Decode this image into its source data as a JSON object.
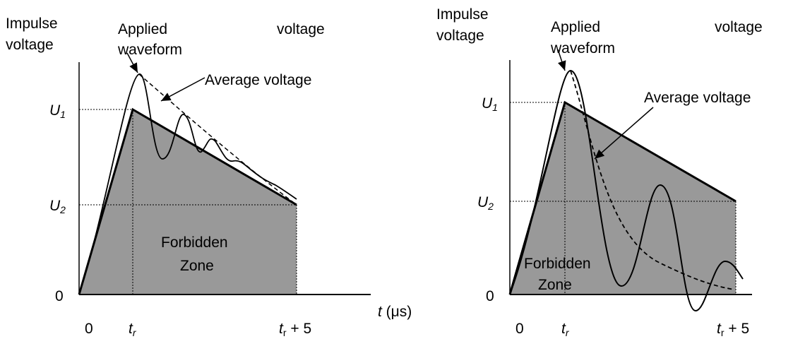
{
  "panels": [
    {
      "y_label": [
        "Impulse",
        "voltage"
      ],
      "applied_label": [
        "Applied",
        "waveform"
      ],
      "extra_label": "voltage",
      "average_label": "Average voltage",
      "u1": {
        "main": "U",
        "sub": "1"
      },
      "u2": {
        "main": "U",
        "sub": "2"
      },
      "y_zero": "0",
      "x_zero": "0",
      "tr": {
        "main": "t",
        "sub": "r"
      },
      "tr5": {
        "main": "t",
        "sub": "r",
        "rest": " + 5"
      },
      "x_label": {
        "main": "t",
        "rest": " (μs)"
      },
      "zone_label": [
        "Forbidden",
        "Zone"
      ]
    },
    {
      "y_label": [
        "Impulse",
        "voltage"
      ],
      "applied_label": [
        "Applied",
        "waveform"
      ],
      "extra_label": "voltage",
      "average_label": "Average voltage",
      "u1": {
        "main": "U",
        "sub": "1"
      },
      "u2": {
        "main": "U",
        "sub": "2"
      },
      "y_zero": "0",
      "x_zero": "0",
      "tr": {
        "main": "t",
        "sub": "r"
      },
      "tr5": {
        "main": "t",
        "sub": "r",
        "rest": " + 5"
      },
      "zone_label": [
        "Forbidden",
        "Zone"
      ]
    }
  ]
}
